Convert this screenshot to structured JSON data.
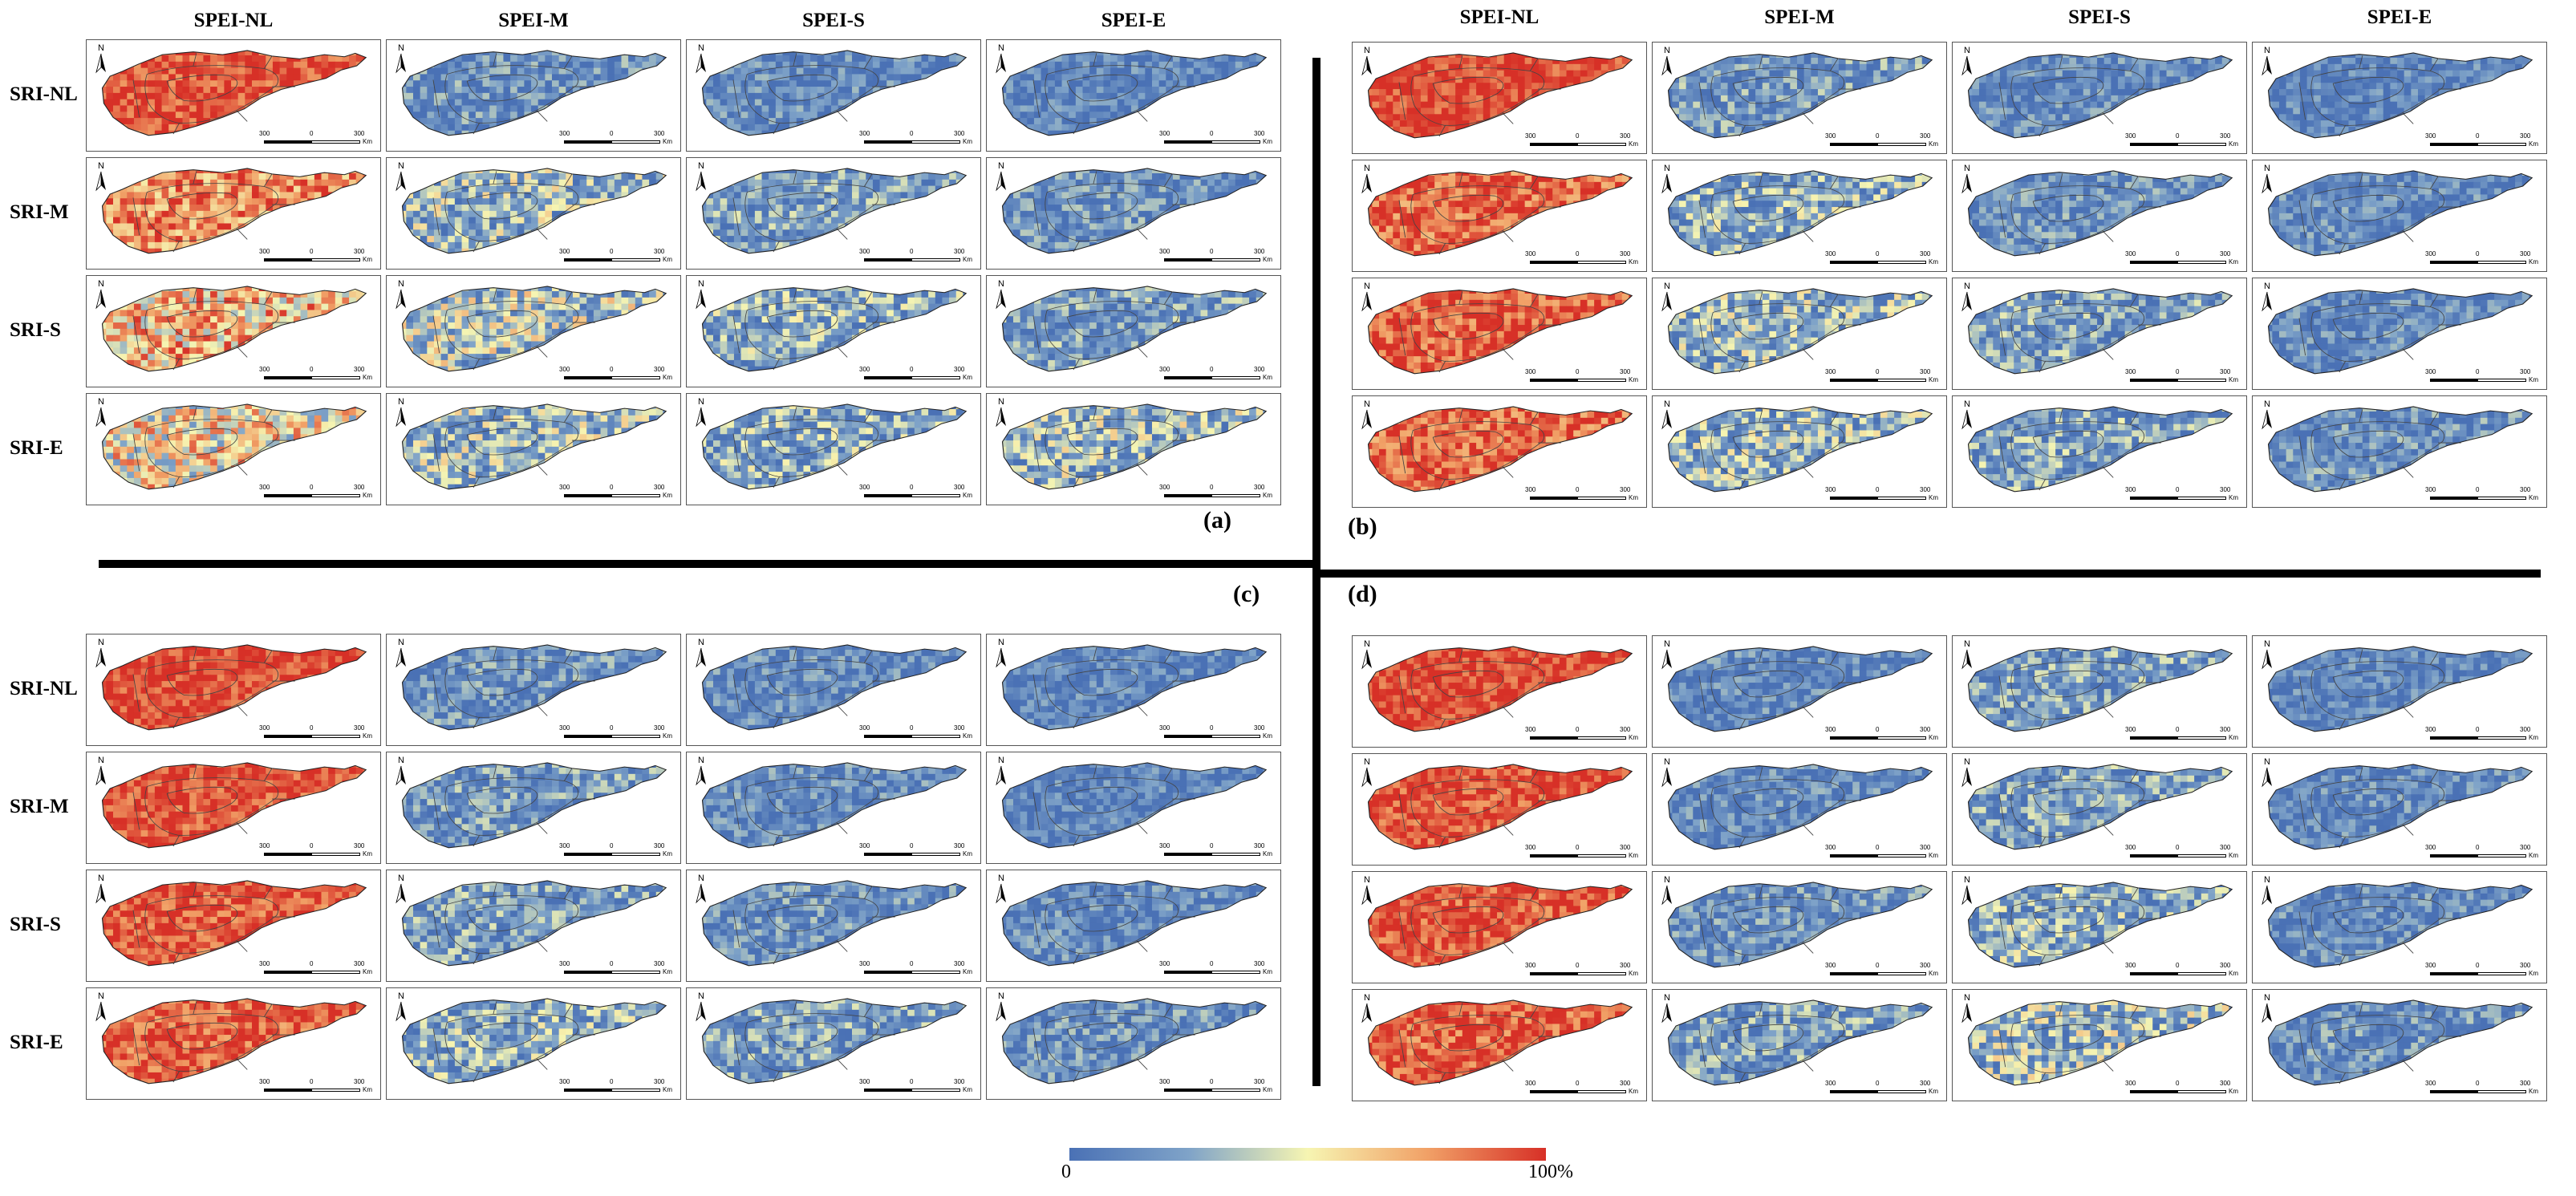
{
  "figure": {
    "column_headers": [
      "SPEI-NL",
      "SPEI-M",
      "SPEI-S",
      "SPEI-E"
    ],
    "row_headers": [
      "SRI-NL",
      "SRI-M",
      "SRI-S",
      "SRI-E"
    ],
    "quadrants": [
      {
        "label": "(a)",
        "relative_intensity": [
          [
            0.93,
            0.15,
            0.12,
            0.1
          ],
          [
            0.8,
            0.3,
            0.2,
            0.15
          ],
          [
            0.65,
            0.35,
            0.25,
            0.2
          ],
          [
            0.55,
            0.3,
            0.25,
            0.3
          ]
        ]
      },
      {
        "label": "(b)",
        "relative_intensity": [
          [
            0.95,
            0.18,
            0.12,
            0.1
          ],
          [
            0.88,
            0.25,
            0.15,
            0.12
          ],
          [
            0.9,
            0.28,
            0.2,
            0.12
          ],
          [
            0.88,
            0.28,
            0.22,
            0.15
          ]
        ]
      },
      {
        "label": "(c)",
        "relative_intensity": [
          [
            0.95,
            0.15,
            0.12,
            0.1
          ],
          [
            0.93,
            0.18,
            0.13,
            0.1
          ],
          [
            0.92,
            0.2,
            0.15,
            0.12
          ],
          [
            0.9,
            0.25,
            0.2,
            0.15
          ]
        ]
      },
      {
        "label": "(d)",
        "relative_intensity": [
          [
            0.95,
            0.12,
            0.2,
            0.1
          ],
          [
            0.93,
            0.12,
            0.2,
            0.12
          ],
          [
            0.92,
            0.15,
            0.25,
            0.12
          ],
          [
            0.9,
            0.2,
            0.3,
            0.15
          ]
        ]
      }
    ],
    "north_arrow_label": "N",
    "scale_bar": {
      "left": "300",
      "mid": "0",
      "right": "300",
      "unit": "Km"
    }
  },
  "colorbar": {
    "min_label": "0",
    "max_label": "100%",
    "colors": [
      "#4a71b5",
      "#7fa3c8",
      "#f6f5b2",
      "#f1a167",
      "#d73027"
    ]
  }
}
